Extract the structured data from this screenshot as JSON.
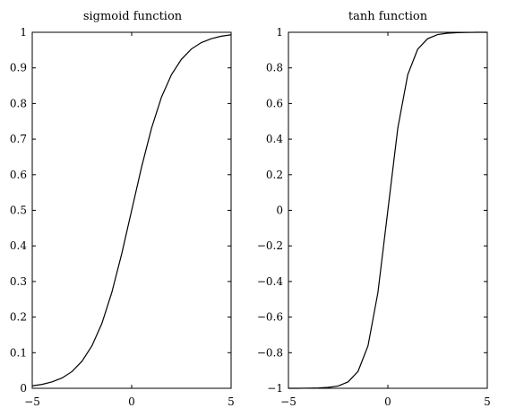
{
  "chart_data": [
    {
      "type": "line",
      "title": "sigmoid function",
      "xlabel": "",
      "ylabel": "",
      "xlim": [
        -5,
        5
      ],
      "ylim": [
        0,
        1
      ],
      "xticks": [
        -5,
        0,
        5
      ],
      "xtick_labels": [
        "−5",
        "0",
        "5"
      ],
      "yticks": [
        0,
        0.1,
        0.2,
        0.3,
        0.4,
        0.5,
        0.6,
        0.7,
        0.8,
        0.9,
        1
      ],
      "ytick_labels": [
        "0",
        "0.1",
        "0.2",
        "0.3",
        "0.4",
        "0.5",
        "0.6",
        "0.7",
        "0.8",
        "0.9",
        "1"
      ],
      "grid": false,
      "series": [
        {
          "x": [
            -5,
            -4.5,
            -4,
            -3.5,
            -3,
            -2.5,
            -2,
            -1.5,
            -1,
            -0.5,
            0,
            0.5,
            1,
            1.5,
            2,
            2.5,
            3,
            3.5,
            4,
            4.5,
            5
          ],
          "y": [
            0.007,
            0.011,
            0.018,
            0.029,
            0.047,
            0.076,
            0.119,
            0.182,
            0.269,
            0.378,
            0.5,
            0.622,
            0.731,
            0.818,
            0.881,
            0.924,
            0.953,
            0.971,
            0.982,
            0.989,
            0.993
          ]
        }
      ]
    },
    {
      "type": "line",
      "title": "tanh function",
      "xlabel": "",
      "ylabel": "",
      "xlim": [
        -5,
        5
      ],
      "ylim": [
        -1,
        1
      ],
      "xticks": [
        -5,
        0,
        5
      ],
      "xtick_labels": [
        "−5",
        "0",
        "5"
      ],
      "yticks": [
        -1,
        -0.8,
        -0.6,
        -0.4,
        -0.2,
        0,
        0.2,
        0.4,
        0.6,
        0.8,
        1
      ],
      "ytick_labels": [
        "−1",
        "−0.8",
        "−0.6",
        "−0.4",
        "−0.2",
        "0",
        "0.2",
        "0.4",
        "0.6",
        "0.8",
        "1"
      ],
      "grid": false,
      "series": [
        {
          "x": [
            -5,
            -4.5,
            -4,
            -3.5,
            -3,
            -2.5,
            -2,
            -1.5,
            -1,
            -0.5,
            0,
            0.5,
            1,
            1.5,
            2,
            2.5,
            3,
            3.5,
            4,
            4.5,
            5
          ],
          "y": [
            -1.0,
            -1.0,
            -0.999,
            -0.998,
            -0.995,
            -0.987,
            -0.964,
            -0.905,
            -0.762,
            -0.462,
            0,
            0.462,
            0.762,
            0.905,
            0.964,
            0.987,
            0.995,
            0.998,
            0.999,
            1.0,
            1.0
          ]
        }
      ]
    }
  ]
}
